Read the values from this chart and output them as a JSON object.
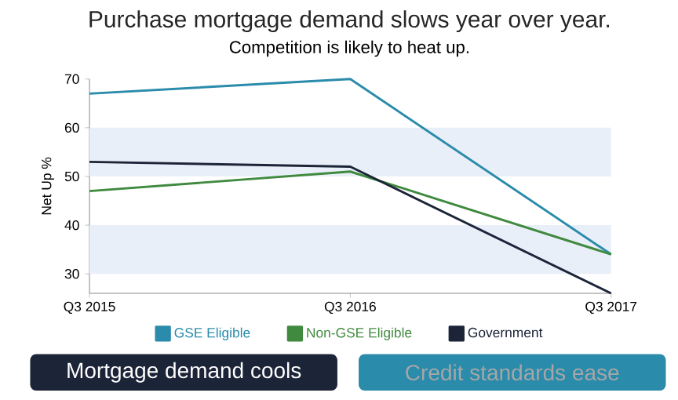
{
  "chart_data": {
    "type": "line",
    "title": "Purchase mortgage demand slows year over year.",
    "subtitle": "Competition is likely to heat up.",
    "ylabel": "Net Up %",
    "categories": [
      "Q3 2015",
      "Q3 2016",
      "Q3 2017"
    ],
    "series": [
      {
        "name": "GSE Eligible",
        "color": "#2a8bab",
        "values": [
          67,
          70,
          34
        ]
      },
      {
        "name": "Non-GSE Eligible",
        "color": "#3f8a3f",
        "values": [
          47,
          51,
          34
        ]
      },
      {
        "name": "Government",
        "color": "#1c2438",
        "values": [
          53,
          52,
          26
        ]
      }
    ],
    "ylim": [
      26,
      70
    ],
    "yticks": [
      30,
      40,
      50,
      60,
      70
    ],
    "bands": [
      {
        "axis": "y",
        "from": 30,
        "to": 40,
        "color": "#e9eff8"
      },
      {
        "axis": "y",
        "from": 50,
        "to": 60,
        "color": "#e9eff8"
      }
    ],
    "legend": "bottom",
    "annotations": [
      "Mortgage demand cools",
      "Credit standards ease"
    ]
  }
}
